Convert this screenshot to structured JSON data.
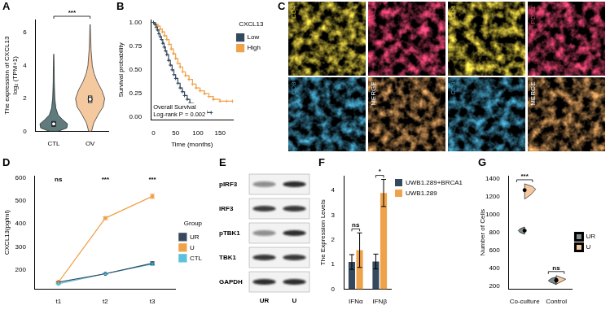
{
  "chart_data": [
    {
      "panel": "A",
      "type": "violin",
      "categories": [
        "CTL",
        "OV"
      ],
      "colors": [
        "#5f7b7d",
        "#f5c9a0"
      ],
      "ylabel": [
        "The expression of CXCL13",
        "log₂ (TPM+1)"
      ],
      "ylim": [
        0,
        6.8
      ],
      "yticks": [
        0,
        2,
        4,
        6
      ],
      "grid": false,
      "density": [
        [
          [
            0,
            0.12
          ],
          [
            0.2,
            0.36
          ],
          [
            0.45,
            0.38
          ],
          [
            0.7,
            0.25
          ],
          [
            1.0,
            0.12
          ],
          [
            1.4,
            0.06
          ],
          [
            2.0,
            0.03
          ],
          [
            3.0,
            0.015
          ],
          [
            4.0,
            0.01
          ],
          [
            4.7,
            0
          ]
        ],
        [
          [
            0,
            0.04
          ],
          [
            0.5,
            0.1
          ],
          [
            1.0,
            0.22
          ],
          [
            1.5,
            0.36
          ],
          [
            2.0,
            0.4
          ],
          [
            2.5,
            0.32
          ],
          [
            3.0,
            0.2
          ],
          [
            3.5,
            0.11
          ],
          [
            4.0,
            0.06
          ],
          [
            5.0,
            0.025
          ],
          [
            6.0,
            0.01
          ],
          [
            6.5,
            0
          ]
        ]
      ],
      "box": [
        {
          "q1": 0.3,
          "median": 0.45,
          "q3": 0.6
        },
        {
          "q1": 1.75,
          "median": 1.95,
          "q3": 2.15
        }
      ],
      "annotations": [
        {
          "text": "***",
          "between": [
            "CTL",
            "OV"
          ]
        }
      ]
    },
    {
      "panel": "B",
      "type": "line",
      "line_style": "step",
      "marker": "cross",
      "grid": false,
      "xlabel": "Time (months)",
      "ylabel": "Survival probability",
      "xlim": [
        -6,
        180
      ],
      "xticks": [
        0,
        50,
        100,
        150
      ],
      "ylim": [
        -0.03,
        1.03
      ],
      "yticks": [
        {
          "value": 0,
          "label": "0.00"
        },
        {
          "value": 0.25,
          "label": "0.25"
        },
        {
          "value": 0.5,
          "label": "0.50"
        },
        {
          "value": 0.75,
          "label": "0.75"
        },
        {
          "value": 1,
          "label": "1.00"
        }
      ],
      "legend": "top-right",
      "legend_title": "CXCL13",
      "series": [
        {
          "name": "Low",
          "color": "#34495e",
          "x": [
            0,
            3,
            6,
            9,
            12,
            15,
            18,
            21,
            24,
            27,
            30,
            34,
            38,
            42,
            46,
            50,
            55,
            60,
            65,
            70,
            76,
            82,
            90,
            100,
            110,
            120,
            130
          ],
          "values": [
            1.0,
            0.98,
            0.95,
            0.92,
            0.88,
            0.85,
            0.82,
            0.78,
            0.74,
            0.7,
            0.66,
            0.6,
            0.55,
            0.5,
            0.45,
            0.41,
            0.36,
            0.31,
            0.27,
            0.23,
            0.19,
            0.15,
            0.12,
            0.09,
            0.07,
            0.05,
            0.05
          ]
        },
        {
          "name": "High",
          "color": "#f0a24a",
          "x": [
            0,
            5,
            10,
            15,
            20,
            25,
            30,
            35,
            40,
            45,
            50,
            55,
            60,
            66,
            72,
            80,
            88,
            96,
            105,
            115,
            125,
            135,
            150,
            165,
            178
          ],
          "values": [
            1.0,
            0.98,
            0.96,
            0.93,
            0.9,
            0.86,
            0.82,
            0.77,
            0.72,
            0.67,
            0.62,
            0.57,
            0.53,
            0.48,
            0.44,
            0.4,
            0.35,
            0.31,
            0.28,
            0.25,
            0.22,
            0.19,
            0.17,
            0.17,
            0.17
          ]
        }
      ],
      "annotations": [
        "Overall Survival",
        "Log-rank P = 0.002"
      ]
    },
    {
      "panel": "D",
      "type": "line",
      "marker": "circle",
      "grid": false,
      "categories": [
        "t1",
        "t2",
        "t3"
      ],
      "ylabel": "CXCL13(pg/ml)",
      "ylim": [
        115,
        610
      ],
      "yticks": [
        200,
        300,
        400,
        500,
        600
      ],
      "legend": "right",
      "legend_title": "Group",
      "series": [
        {
          "name": "UR",
          "color": "#34495e",
          "values": [
            145,
            182,
            228
          ],
          "errors": [
            4,
            3,
            6
          ]
        },
        {
          "name": "U",
          "color": "#f0a24a",
          "values": [
            145,
            425,
            520
          ],
          "errors": [
            4,
            6,
            9
          ]
        },
        {
          "name": "CTL",
          "color": "#5bc0de",
          "values": [
            138,
            182,
            224
          ],
          "errors": [
            3,
            3,
            5
          ]
        }
      ],
      "annotations": [
        {
          "category": "t1",
          "text": "ns"
        },
        {
          "category": "t2",
          "text": "***"
        },
        {
          "category": "t3",
          "text": "***"
        }
      ]
    },
    {
      "panel": "F",
      "type": "bar",
      "grid": false,
      "categories": [
        "IFNα",
        "IFNβ"
      ],
      "ylabel": "The Expression Levels",
      "ylim": [
        0,
        4.6
      ],
      "yticks": [
        0,
        1,
        2,
        3,
        4
      ],
      "legend": "top-right",
      "series": [
        {
          "name": "UWB1.289+BRCA1",
          "color": "#34495e",
          "values": [
            1.1,
            1.12
          ],
          "errors": [
            0.3,
            0.3
          ]
        },
        {
          "name": "UWB1.289",
          "color": "#f0a24a",
          "values": [
            1.58,
            3.9
          ],
          "errors": [
            0.7,
            0.55
          ]
        }
      ],
      "annotations": [
        {
          "category": "IFNα",
          "text": "ns"
        },
        {
          "category": "IFNβ",
          "text": "*"
        }
      ]
    },
    {
      "panel": "G",
      "type": "violin",
      "grid": false,
      "categories": [
        "Co-culture",
        "Control"
      ],
      "ylabel": "Number of Cells",
      "ylim": [
        170,
        1430
      ],
      "yticks": [
        200,
        400,
        600,
        800,
        1000,
        1200,
        1400
      ],
      "legend": "right",
      "series": [
        {
          "name": "UR",
          "color": "#7f8c8d",
          "values": [
            820,
            265
          ],
          "density": [
            [
              [
                780,
                0
              ],
              [
                800,
                0.15
              ],
              [
                820,
                0.2
              ],
              [
                840,
                0.15
              ],
              [
                860,
                0
              ]
            ],
            [
              [
                220,
                0
              ],
              [
                250,
                0.2
              ],
              [
                265,
                0.25
              ],
              [
                290,
                0.15
              ],
              [
                305,
                0
              ]
            ]
          ]
        },
        {
          "name": "U",
          "color": "#f5c9a0",
          "values": [
            1270,
            272
          ],
          "density": [
            [
              [
                1170,
                0
              ],
              [
                1220,
                0.2
              ],
              [
                1280,
                0.35
              ],
              [
                1310,
                0.25
              ],
              [
                1340,
                0
              ]
            ],
            [
              [
                225,
                0
              ],
              [
                260,
                0.2
              ],
              [
                280,
                0.3
              ],
              [
                300,
                0.15
              ],
              [
                320,
                0
              ]
            ]
          ]
        }
      ],
      "annotations": [
        {
          "category": "Co-culture",
          "text": "***"
        },
        {
          "category": "Control",
          "text": "ns"
        }
      ]
    }
  ],
  "images": {
    "panel": "C",
    "tiles": [
      {
        "label": "CD4",
        "color": "#d6c23c"
      },
      {
        "label": "PD-L1",
        "color": "#d8406a"
      },
      {
        "label": "CD4",
        "color": "#d6c23c"
      },
      {
        "label": "PD-L1",
        "color": "#d8406a"
      },
      {
        "label": "CD8",
        "color": "#3c8fb0"
      },
      {
        "label": "MERGE",
        "color": "#c08a50",
        "label_color": "#ffffff"
      },
      {
        "label": "CD8",
        "color": "#3c8fb0"
      },
      {
        "label": "MERGE",
        "color": "#c08a50",
        "label_color": "#ffffff"
      }
    ]
  },
  "blot": {
    "panel": "E",
    "columns": [
      "UR",
      "U"
    ],
    "rows": [
      {
        "label": "pIRF3",
        "intensity": [
          0.45,
          0.9
        ]
      },
      {
        "label": "IRF3",
        "intensity": [
          0.8,
          0.85
        ]
      },
      {
        "label": "pTBK1",
        "intensity": [
          0.45,
          0.9
        ]
      },
      {
        "label": "TBK1",
        "intensity": [
          0.85,
          0.85
        ]
      },
      {
        "label": "GAPDH",
        "intensity": [
          0.9,
          0.9
        ]
      }
    ]
  }
}
